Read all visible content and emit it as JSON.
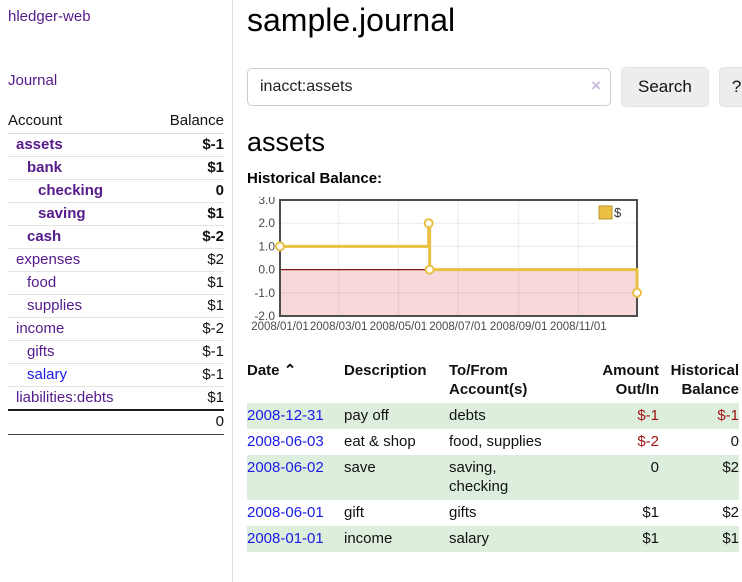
{
  "sidebar": {
    "brand": "hledger-web",
    "nav": {
      "journal": "Journal"
    },
    "accounts": {
      "header": {
        "account": "Account",
        "balance": "Balance"
      },
      "rows": [
        {
          "name": "assets",
          "balance": "$-1"
        },
        {
          "name": "bank",
          "balance": "$1"
        },
        {
          "name": "checking",
          "balance": "0"
        },
        {
          "name": "saving",
          "balance": "$1"
        },
        {
          "name": "cash",
          "balance": "$-2"
        },
        {
          "name": "expenses",
          "balance": "$2"
        },
        {
          "name": "food",
          "balance": "$1"
        },
        {
          "name": "supplies",
          "balance": "$1"
        },
        {
          "name": "income",
          "balance": "$-2"
        },
        {
          "name": "gifts",
          "balance": "$-1"
        },
        {
          "name": "salary",
          "balance": "$-1"
        },
        {
          "name": "liabilities:debts",
          "balance": "$1"
        }
      ],
      "total": "0"
    }
  },
  "header": {
    "title": "sample.journal"
  },
  "search": {
    "value": "inacct:assets",
    "clear_icon": "×",
    "button_label": "Search",
    "help_label": "?"
  },
  "account_page": {
    "heading": "assets",
    "chart_title": "Historical Balance:"
  },
  "chart_data": {
    "type": "line",
    "step": true,
    "title": "Historical Balance",
    "legend_position": "top-right",
    "grid": true,
    "x_range_days": [
      0,
      365
    ],
    "y_range": [
      -2.0,
      3.0
    ],
    "series": [
      {
        "name": "$",
        "points": [
          [
            0,
            1
          ],
          [
            152,
            2
          ],
          [
            153,
            0
          ],
          [
            365,
            -1
          ]
        ]
      }
    ],
    "x_ticks": [
      {
        "day": 0,
        "label": "2008/01/01"
      },
      {
        "day": 60,
        "label": "2008/03/01"
      },
      {
        "day": 121,
        "label": "2008/05/01"
      },
      {
        "day": 182,
        "label": "2008/07/01"
      },
      {
        "day": 244,
        "label": "2008/09/01"
      },
      {
        "day": 305,
        "label": "2008/11/01"
      }
    ],
    "y_ticks": [
      {
        "value": 3,
        "label": "3.0"
      },
      {
        "value": 2,
        "label": "2.0"
      },
      {
        "value": 1,
        "label": "1.0"
      },
      {
        "value": 0,
        "label": "0.0"
      },
      {
        "value": -1,
        "label": "-1.0"
      },
      {
        "value": -2,
        "label": "-2.0"
      }
    ],
    "colors": {
      "line": "#e9c044",
      "legend_border": "#b89531",
      "zero_line": "#7c1313",
      "below_zero_fill": "#f8d9d9"
    }
  },
  "transactions": {
    "headers": {
      "date": "Date",
      "sort_icon": "⌃",
      "description": "Description",
      "tofrom": "To/From\nAccount(s)",
      "amount": "Amount\nOut/In",
      "balance": "Historical\nBalance"
    },
    "rows": [
      {
        "date": "2008-12-31",
        "description": "pay off",
        "accounts": "debts",
        "amount": "$-1",
        "balance": "$-1"
      },
      {
        "date": "2008-06-03",
        "description": "eat & shop",
        "accounts": "food, supplies",
        "amount": "$-2",
        "balance": "0"
      },
      {
        "date": "2008-06-02",
        "description": "save",
        "accounts": "saving,\nchecking",
        "amount": "0",
        "balance": "$2"
      },
      {
        "date": "2008-06-01",
        "description": "gift",
        "accounts": "gifts",
        "amount": "$1",
        "balance": "$2"
      },
      {
        "date": "2008-01-01",
        "description": "income",
        "accounts": "salary",
        "amount": "$1",
        "balance": "$1"
      }
    ]
  },
  "colors": {
    "link_purple": "#551a8b",
    "link_blue": "#1a1ae8",
    "negative_strong": "#a01313",
    "negative_soft": "#c06a6a",
    "row_stripe_green": "#ddeedd"
  }
}
